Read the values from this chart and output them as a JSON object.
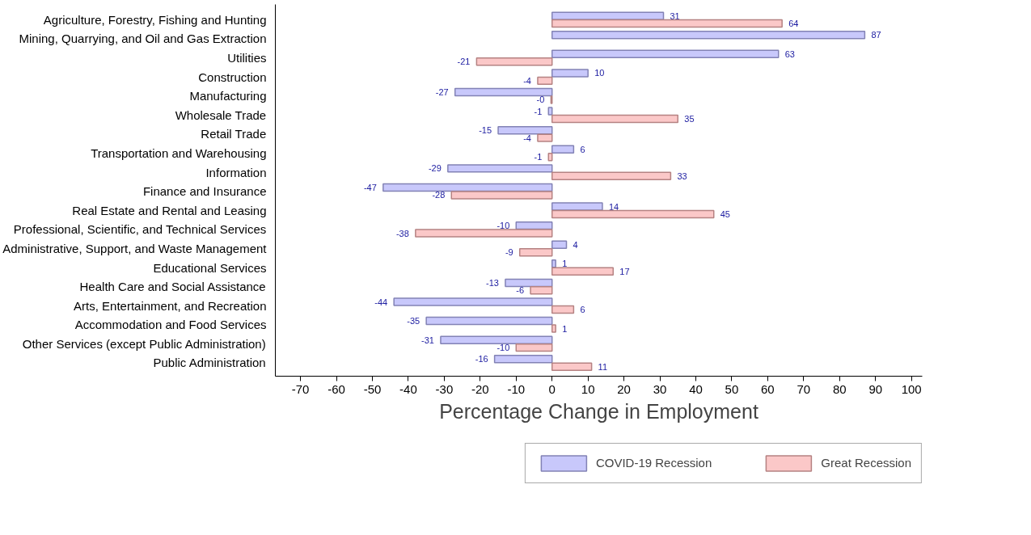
{
  "chart_data": {
    "type": "bar",
    "orientation": "horizontal",
    "xlabel": "Percentage Change in Employment",
    "categories": [
      "Agriculture, Forestry, Fishing and Hunting",
      "Mining, Quarrying, and Oil and Gas Extraction",
      "Utilities",
      "Construction",
      "Manufacturing",
      "Wholesale Trade",
      "Retail Trade",
      "Transportation and Warehousing",
      "Information",
      "Finance and Insurance",
      "Real Estate and Rental and Leasing",
      "Professional, Scientific, and Technical Services",
      "Administrative, Support, and Waste Management",
      "Educational Services",
      "Health Care and Social Assistance",
      "Arts, Entertainment, and Recreation",
      "Accommodation and Food Services",
      "Other Services (except Public Administration)",
      "Public Administration"
    ],
    "series": [
      {
        "name": "COVID-19 Recession",
        "color": "#c8c8fb",
        "values": [
          31,
          87,
          63,
          10,
          -27,
          -1,
          -15,
          6,
          -29,
          -47,
          14,
          -10,
          4,
          1,
          -13,
          -44,
          -35,
          -31,
          -16
        ],
        "value_labels": [
          "31",
          "87",
          "63",
          "10",
          "-27",
          "-1",
          "-15",
          "6",
          "-29",
          "-47",
          "14",
          "-10",
          "4",
          "1",
          "-13",
          "-44",
          "-35",
          "-31",
          "-16"
        ]
      },
      {
        "name": "Great Recession",
        "color": "#fbc8c8",
        "values": [
          64,
          null,
          -21,
          -4,
          -0.3,
          35,
          -4,
          -1,
          33,
          -28,
          45,
          -38,
          -9,
          17,
          -6,
          6,
          1,
          -10,
          11
        ],
        "value_labels": [
          "64",
          null,
          "-21",
          "-4",
          "-0",
          "35",
          "-4",
          "-1",
          "33",
          "-28",
          "45",
          "-38",
          "-9",
          "17",
          "-6",
          "6",
          "1",
          "-10",
          "11"
        ]
      }
    ],
    "xlim": [
      -77,
      103
    ],
    "xticks": [
      -70,
      -60,
      -50,
      -40,
      -30,
      -20,
      -10,
      0,
      10,
      20,
      30,
      40,
      50,
      60,
      70,
      80,
      90,
      100
    ],
    "grid": false,
    "legend": "bottom"
  }
}
